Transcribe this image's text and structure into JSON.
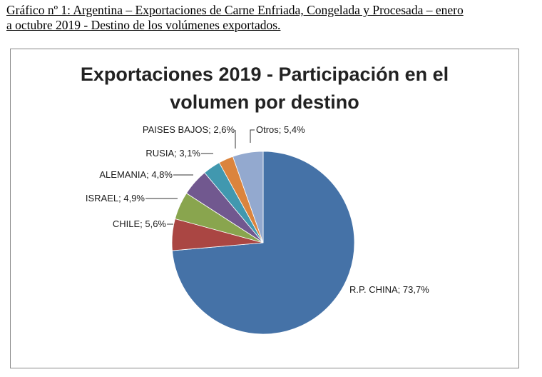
{
  "document": {
    "caption_line1": "Gráfico nº 1: Argentina – Exportaciones de Carne Enfriada, Congelada y Procesada – enero",
    "caption_line2": "a octubre 2019 - Destino de los volúmenes exportados."
  },
  "chart_data": {
    "type": "pie",
    "title_line1": "Exportaciones 2019 - Participación en el",
    "title_line2": "volumen por destino",
    "slices": [
      {
        "label": "R.P. CHINA; 73,7%",
        "name": "R.P. CHINA",
        "value": 73.7,
        "color": "#4572A7"
      },
      {
        "label": "CHILE; 5,6%",
        "name": "CHILE",
        "value": 5.6,
        "color": "#AA4643"
      },
      {
        "label": "ISRAEL; 4,9%",
        "name": "ISRAEL",
        "value": 4.9,
        "color": "#89A54E"
      },
      {
        "label": "ALEMANIA; 4,8%",
        "name": "ALEMANIA",
        "value": 4.8,
        "color": "#71588F"
      },
      {
        "label": "RUSIA; 3,1%",
        "name": "RUSIA",
        "value": 3.1,
        "color": "#4198AF"
      },
      {
        "label": "PAISES BAJOS; 2,6%",
        "name": "PAISES BAJOS",
        "value": 2.6,
        "color": "#DB843D"
      },
      {
        "label": "Otros; 5,4%",
        "name": "Otros",
        "value": 5.4,
        "color": "#93A9CF"
      }
    ],
    "legend": "none",
    "start_angle": "12 o'clock, clockwise"
  }
}
